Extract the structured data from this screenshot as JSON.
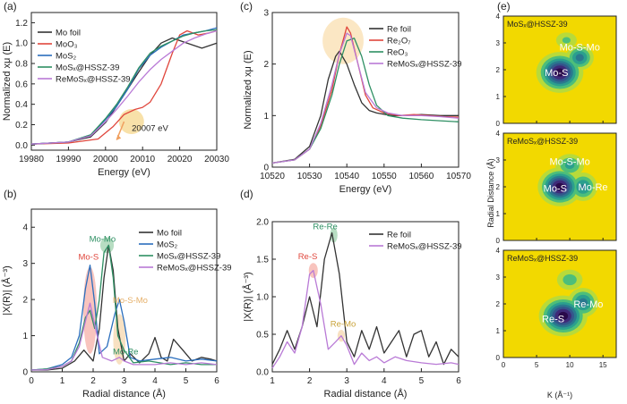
{
  "chart_data": [
    {
      "id": "a",
      "type": "line",
      "panel_label": "(a)",
      "xlabel": "Energy (eV)",
      "ylabel": "Normalized xμ (E)",
      "xlim": [
        19980,
        20030
      ],
      "ylim": [
        -0.05,
        1.3
      ],
      "xticks": [
        19980,
        19990,
        20000,
        20010,
        20020,
        20030
      ],
      "yticks": [
        0.0,
        0.2,
        0.4,
        0.6,
        0.8,
        1.0,
        1.2
      ],
      "tick_decimals": 1,
      "legend_position": "top-left",
      "series": [
        {
          "name": "Mo foil",
          "color": "#333333",
          "x": [
            19980,
            19990,
            19996,
            20000,
            20003,
            20006,
            20009,
            20012,
            20015,
            20018,
            20022,
            20026,
            20030
          ],
          "y": [
            0.01,
            0.03,
            0.08,
            0.22,
            0.38,
            0.55,
            0.72,
            0.88,
            1.0,
            1.05,
            1.0,
            0.95,
            1.0
          ]
        },
        {
          "name": "MoO3",
          "display": "MoO₃",
          "color": "#e0463c",
          "x": [
            19980,
            19990,
            19998,
            20002,
            20005,
            20008,
            20010,
            20012,
            20015,
            20018,
            20020,
            20022,
            20025,
            20028,
            20030
          ],
          "y": [
            0.01,
            0.02,
            0.06,
            0.18,
            0.3,
            0.35,
            0.37,
            0.42,
            0.6,
            0.9,
            1.08,
            1.12,
            1.08,
            1.1,
            1.12
          ]
        },
        {
          "name": "MoS2",
          "display": "MoS₂",
          "color": "#2a6ebd",
          "x": [
            19980,
            19990,
            19996,
            20000,
            20003,
            20006,
            20009,
            20012,
            20015,
            20018,
            20021,
            20024,
            20027,
            20030
          ],
          "y": [
            0.01,
            0.03,
            0.1,
            0.25,
            0.38,
            0.55,
            0.75,
            0.88,
            0.96,
            1.02,
            1.08,
            1.1,
            1.12,
            1.15
          ]
        },
        {
          "name": "MoSx@HSSZ-39",
          "display": "MoSₓ@HSSZ-39",
          "color": "#2e8f63",
          "x": [
            19980,
            19990,
            19996,
            20000,
            20003,
            20006,
            20009,
            20012,
            20015,
            20018,
            20021,
            20024,
            20027,
            20030
          ],
          "y": [
            0.01,
            0.03,
            0.1,
            0.26,
            0.4,
            0.57,
            0.76,
            0.9,
            0.97,
            1.02,
            1.07,
            1.1,
            1.12,
            1.13
          ]
        },
        {
          "name": "ReMoSx@HSSZ-39",
          "display": "ReMoSₓ@HSSZ-39",
          "color": "#b97ad6",
          "x": [
            19980,
            19990,
            19996,
            20000,
            20003,
            20006,
            20009,
            20012,
            20015,
            20018,
            20021,
            20024,
            20027,
            20030
          ],
          "y": [
            0.01,
            0.03,
            0.09,
            0.23,
            0.35,
            0.48,
            0.62,
            0.74,
            0.84,
            0.92,
            1.0,
            1.05,
            1.09,
            1.12
          ]
        }
      ],
      "annotations": [
        {
          "text": "20007 eV",
          "x": 20012,
          "y": 0.14,
          "color": "#222222"
        }
      ],
      "highlights": [
        {
          "x": 20007,
          "y": 0.23,
          "color": "#f5d78c"
        }
      ],
      "arrows": [
        {
          "from": [
            20005,
            0.23
          ],
          "to": [
            20003,
            0.05
          ],
          "color": "#f0a060"
        }
      ]
    },
    {
      "id": "b",
      "type": "line",
      "panel_label": "(b)",
      "xlabel": "Radial distance (Å)",
      "ylabel": "|X(R)| (Å⁻³)",
      "xlim": [
        0,
        6
      ],
      "ylim": [
        0,
        4.5
      ],
      "xticks": [
        0,
        1,
        2,
        3,
        4,
        5,
        6
      ],
      "yticks": [
        0,
        1,
        2,
        3,
        4
      ],
      "tick_decimals": 0,
      "legend_position": "top-right",
      "series": [
        {
          "name": "Mo foil",
          "color": "#333333",
          "x": [
            0,
            0.5,
            1,
            1.4,
            1.7,
            2.0,
            2.2,
            2.35,
            2.5,
            2.65,
            2.8,
            3.0,
            3.2,
            3.5,
            3.8,
            4.0,
            4.2,
            4.4,
            4.6,
            4.9,
            5.2,
            5.5,
            5.8,
            6
          ],
          "y": [
            0.05,
            0.05,
            0.1,
            0.3,
            0.6,
            0.3,
            1.2,
            2.6,
            3.5,
            2.8,
            1.2,
            0.3,
            0.5,
            0.25,
            0.5,
            0.95,
            0.4,
            0.3,
            0.9,
            0.6,
            0.3,
            0.4,
            0.35,
            0.3
          ]
        },
        {
          "name": "MoS2",
          "display": "MoS₂",
          "color": "#2a6ebd",
          "x": [
            0,
            0.5,
            1,
            1.3,
            1.55,
            1.75,
            1.9,
            2.05,
            2.2,
            2.45,
            2.7,
            2.85,
            3.0,
            3.2,
            3.5,
            4.0,
            4.5,
            5.0,
            5.5,
            6
          ],
          "y": [
            0.05,
            0.08,
            0.2,
            0.4,
            1.0,
            2.3,
            2.95,
            1.9,
            0.5,
            0.7,
            1.6,
            2.0,
            1.4,
            0.4,
            0.3,
            0.35,
            0.4,
            0.3,
            0.35,
            0.3
          ]
        },
        {
          "name": "MoSx@HSSZ-39",
          "display": "MoSₓ@HSSZ-39",
          "color": "#2e8f63",
          "x": [
            0,
            0.5,
            1,
            1.3,
            1.55,
            1.75,
            1.9,
            2.05,
            2.2,
            2.35,
            2.5,
            2.65,
            2.8,
            3.0,
            3.3,
            3.8,
            4.5,
            5.0,
            5.5,
            6
          ],
          "y": [
            0.05,
            0.08,
            0.15,
            0.3,
            0.8,
            1.5,
            1.7,
            1.2,
            2.0,
            3.3,
            3.5,
            2.6,
            1.0,
            0.6,
            0.25,
            0.3,
            0.2,
            0.25,
            0.2,
            0.2
          ]
        },
        {
          "name": "ReMoSx@HSSZ-39",
          "display": "ReMoSₓ@HSSZ-39",
          "color": "#b97ad6",
          "x": [
            0,
            0.5,
            1,
            1.3,
            1.55,
            1.75,
            1.9,
            2.1,
            2.3,
            2.6,
            2.85,
            3.0,
            3.3,
            4.0,
            4.5,
            5.0,
            5.5,
            6
          ],
          "y": [
            0.05,
            0.06,
            0.15,
            0.3,
            0.7,
            1.4,
            1.9,
            1.1,
            0.4,
            0.3,
            0.4,
            0.3,
            0.2,
            0.2,
            0.25,
            0.2,
            0.25,
            0.2
          ]
        }
      ],
      "annotations": [
        {
          "text": "Mo-Mo",
          "x": 2.3,
          "y": 3.6,
          "color": "#2e8f63"
        },
        {
          "text": "Mo-S",
          "x": 1.85,
          "y": 3.1,
          "color": "#e0463c"
        },
        {
          "text": "Mo-S-Mo",
          "x": 3.2,
          "y": 1.9,
          "color": "#e6b06a"
        },
        {
          "text": "Mo-Re",
          "x": 3.05,
          "y": 0.48,
          "color": "#2e8f63"
        }
      ],
      "highlights": [
        {
          "x": 1.9,
          "y": 1.7,
          "color": "#f6b0a8",
          "rx": 0.22,
          "ry": 1.2
        },
        {
          "x": 2.45,
          "y": 3.5,
          "color": "#9fd2ae",
          "rx": 0.22,
          "ry": 0.22
        },
        {
          "x": 2.85,
          "y": 0.9,
          "color": "#f6d7ad",
          "rx": 0.2,
          "ry": 0.7
        }
      ]
    },
    {
      "id": "c",
      "type": "line",
      "panel_label": "(c)",
      "xlabel": "Energy (eV)",
      "ylabel": "Normalized xμ (E)",
      "xlim": [
        10520,
        10570
      ],
      "ylim": [
        0,
        3
      ],
      "xticks": [
        10520,
        10530,
        10540,
        10550,
        10560,
        10570
      ],
      "yticks": [
        0,
        1,
        2,
        3
      ],
      "tick_decimals": 0,
      "legend_position": "top-right",
      "series": [
        {
          "name": "Re foil",
          "color": "#333333",
          "x": [
            10520,
            10526,
            10530,
            10533,
            10535,
            10537,
            10538,
            10540,
            10542,
            10544,
            10546,
            10548,
            10552,
            10556,
            10560,
            10565,
            10570
          ],
          "y": [
            0.08,
            0.15,
            0.4,
            1.0,
            1.7,
            2.15,
            2.25,
            2.0,
            1.6,
            1.25,
            1.1,
            1.05,
            1.0,
            1.0,
            1.02,
            1.0,
            1.0
          ]
        },
        {
          "name": "Re2O7",
          "display": "Re₂O₇",
          "color": "#e0463c",
          "x": [
            10520,
            10526,
            10530,
            10533,
            10536,
            10538,
            10540,
            10541,
            10543,
            10545,
            10547,
            10550,
            10554,
            10558,
            10562,
            10566,
            10570
          ],
          "y": [
            0.08,
            0.14,
            0.35,
            0.8,
            1.5,
            2.2,
            2.72,
            2.6,
            2.0,
            1.4,
            1.15,
            1.05,
            1.0,
            1.02,
            1.0,
            0.98,
            0.97
          ]
        },
        {
          "name": "ReO3",
          "display": "ReO₃",
          "color": "#2e8f63",
          "x": [
            10520,
            10526,
            10530,
            10533,
            10536,
            10538,
            10540,
            10542,
            10544,
            10546,
            10548,
            10551,
            10555,
            10560,
            10565,
            10570
          ],
          "y": [
            0.08,
            0.14,
            0.35,
            0.75,
            1.4,
            2.0,
            2.45,
            2.5,
            2.15,
            1.6,
            1.2,
            1.0,
            0.95,
            0.92,
            0.9,
            0.88
          ]
        },
        {
          "name": "ReMoSx@HSSZ-39",
          "display": "ReMoSₓ@HSSZ-39",
          "color": "#b97ad6",
          "x": [
            10520,
            10526,
            10530,
            10533,
            10536,
            10538,
            10540,
            10541,
            10543,
            10545,
            10548,
            10551,
            10555,
            10560,
            10565,
            10570
          ],
          "y": [
            0.08,
            0.14,
            0.35,
            0.85,
            1.6,
            2.2,
            2.6,
            2.55,
            2.0,
            1.45,
            1.15,
            1.05,
            1.0,
            1.0,
            0.98,
            0.95
          ]
        }
      ],
      "highlights": [
        {
          "x": 10539,
          "y": 2.45,
          "color": "#f9dfb0",
          "rx": 5.5,
          "ry": 0.45
        }
      ]
    },
    {
      "id": "d",
      "type": "line",
      "panel_label": "(d)",
      "xlabel": "Radial distance (Å)",
      "ylabel": "|X(R)| (Å⁻³)",
      "xlim": [
        1,
        6
      ],
      "ylim": [
        0,
        2.0
      ],
      "xticks": [
        1,
        2,
        3,
        4,
        5,
        6
      ],
      "yticks": [
        0.0,
        0.5,
        1.0,
        1.5,
        2.0
      ],
      "tick_decimals": 1,
      "legend_position": "top-right",
      "series": [
        {
          "name": "Re foil",
          "color": "#333333",
          "x": [
            1,
            1.2,
            1.4,
            1.6,
            1.8,
            2.0,
            2.2,
            2.4,
            2.6,
            2.8,
            3.0,
            3.2,
            3.4,
            3.6,
            3.8,
            4.0,
            4.2,
            4.4,
            4.6,
            4.8,
            5.0,
            5.2,
            5.4,
            5.6,
            5.8,
            6
          ],
          "y": [
            0.1,
            0.3,
            0.55,
            0.3,
            0.6,
            1.0,
            0.6,
            1.5,
            1.85,
            1.3,
            0.4,
            0.2,
            0.55,
            0.3,
            0.6,
            0.25,
            0.4,
            0.55,
            0.2,
            0.5,
            0.55,
            0.2,
            0.4,
            0.1,
            0.3,
            0.2
          ]
        },
        {
          "name": "ReMoSx@HSSZ-39",
          "display": "ReMoSₓ@HSSZ-39",
          "color": "#b97ad6",
          "x": [
            1,
            1.2,
            1.4,
            1.6,
            1.8,
            2.0,
            2.1,
            2.3,
            2.5,
            2.7,
            2.85,
            3.0,
            3.2,
            3.4,
            3.6,
            3.8,
            4.0,
            4.3,
            4.6,
            5.0,
            5.4,
            5.8,
            6
          ],
          "y": [
            0.05,
            0.2,
            0.4,
            0.25,
            0.6,
            1.3,
            1.35,
            0.9,
            0.3,
            0.4,
            0.48,
            0.35,
            0.1,
            0.25,
            0.15,
            0.2,
            0.12,
            0.2,
            0.15,
            0.12,
            0.1,
            0.12,
            0.1
          ]
        }
      ],
      "annotations": [
        {
          "text": "Re-Re",
          "x": 2.42,
          "y": 1.9,
          "color": "#2e8f63"
        },
        {
          "text": "Re-S",
          "x": 1.95,
          "y": 1.5,
          "color": "#e0463c"
        },
        {
          "text": "Re-Mo",
          "x": 2.9,
          "y": 0.6,
          "color": "#c9a33a"
        }
      ],
      "highlights": [
        {
          "x": 2.1,
          "y": 1.35,
          "color": "#f6b0a8",
          "rx": 0.12,
          "ry": 0.1
        },
        {
          "x": 2.65,
          "y": 1.82,
          "color": "#9fd2ae",
          "rx": 0.1,
          "ry": 0.1
        },
        {
          "x": 2.85,
          "y": 0.48,
          "color": "#f6d7ad",
          "rx": 0.1,
          "ry": 0.08
        }
      ]
    },
    {
      "id": "e",
      "type": "heatmap",
      "panel_label": "(e)",
      "ylabel": "Radial Distance (Å)",
      "xlabel": "K (Å⁻¹)",
      "xlim": [
        0,
        17
      ],
      "ylim": [
        0,
        4
      ],
      "xticks": [
        0,
        5,
        10,
        15
      ],
      "yticks": [
        0,
        1,
        2,
        3,
        4
      ],
      "colormap": [
        "#f2d900",
        "#b8da3a",
        "#4dbe7a",
        "#2b9f8e",
        "#2a788e",
        "#34568c",
        "#3f2a78",
        "#2a0a4a"
      ],
      "subpanels": [
        {
          "title": "MoSx@HSSZ-39",
          "title_display": "MoSₓ@HSSZ-39",
          "peaks": [
            {
              "x": 8.5,
              "y": 1.9,
              "a": 1.0,
              "sx": 3.2,
              "sy": 0.42
            },
            {
              "x": 11.5,
              "y": 2.45,
              "a": 0.6,
              "sx": 2.2,
              "sy": 0.3
            },
            {
              "x": 9.5,
              "y": 3.1,
              "a": 0.3,
              "sx": 2.2,
              "sy": 0.25
            }
          ],
          "labels": [
            {
              "text": "Mo-S",
              "x": 8,
              "y": 1.9
            },
            {
              "text": "Mo-S-Mo",
              "x": 11.5,
              "y": 2.85
            }
          ]
        },
        {
          "title": "ReMoSx@HSSZ-39",
          "title_display": "ReMoSₓ@HSSZ-39",
          "peaks": [
            {
              "x": 8.5,
              "y": 2.0,
              "a": 1.0,
              "sx": 3.0,
              "sy": 0.4
            },
            {
              "x": 12.0,
              "y": 2.0,
              "a": 0.55,
              "sx": 2.3,
              "sy": 0.35
            },
            {
              "x": 10.0,
              "y": 2.8,
              "a": 0.45,
              "sx": 2.5,
              "sy": 0.3
            }
          ],
          "labels": [
            {
              "text": "Mo-S",
              "x": 7.8,
              "y": 1.95
            },
            {
              "text": "Mo-S-Mo",
              "x": 10,
              "y": 2.95
            },
            {
              "text": "Mo-Re",
              "x": 13.5,
              "y": 2.0
            }
          ]
        },
        {
          "title": "ReMoSx@HSSZ-39",
          "title_display": "ReMoSₓ@HSSZ-39",
          "peaks": [
            {
              "x": 9.0,
              "y": 1.55,
              "a": 1.0,
              "sx": 3.3,
              "sy": 0.42
            },
            {
              "x": 12.0,
              "y": 2.05,
              "a": 0.6,
              "sx": 2.4,
              "sy": 0.35
            },
            {
              "x": 10.0,
              "y": 2.9,
              "a": 0.35,
              "sx": 2.5,
              "sy": 0.3
            }
          ],
          "labels": [
            {
              "text": "Re-S",
              "x": 7.5,
              "y": 1.45
            },
            {
              "text": "Re-Mo",
              "x": 12.8,
              "y": 2.0
            }
          ]
        }
      ]
    }
  ]
}
